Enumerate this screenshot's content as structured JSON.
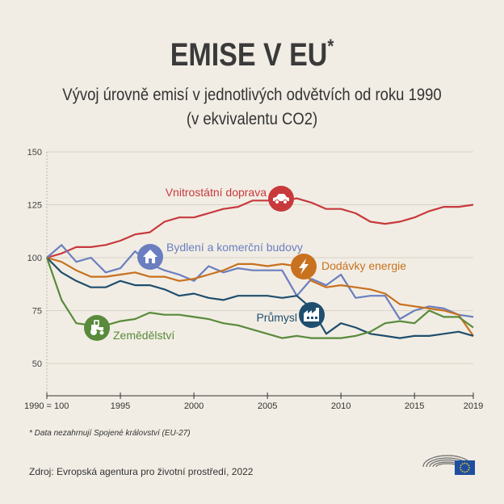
{
  "header": {
    "title": "EMISE V EU",
    "title_mark": "*",
    "subtitle_line1": "Vývoj úrovně emisí v jednotlivých odvětvích od roku 1990",
    "subtitle_line2": "(v ekvivalentu CO2)"
  },
  "chart_data": {
    "type": "line",
    "xlim": [
      1990,
      2019
    ],
    "ylim": [
      50,
      150
    ],
    "yticks": [
      50,
      75,
      100,
      125,
      150
    ],
    "xticks": [
      {
        "value": 1990,
        "label": "1990 = 100"
      },
      {
        "value": 1995,
        "label": "1995"
      },
      {
        "value": 2000,
        "label": "2000"
      },
      {
        "value": 2005,
        "label": "2005"
      },
      {
        "value": 2010,
        "label": "2010"
      },
      {
        "value": 2015,
        "label": "2015"
      },
      {
        "value": 2019,
        "label": "2019"
      }
    ],
    "grid": "horizontal",
    "x": [
      1990,
      1991,
      1992,
      1993,
      1994,
      1995,
      1996,
      1997,
      1998,
      1999,
      2000,
      2001,
      2002,
      2003,
      2004,
      2005,
      2006,
      2007,
      2008,
      2009,
      2010,
      2011,
      2012,
      2013,
      2014,
      2015,
      2016,
      2017,
      2018,
      2019
    ],
    "series": [
      {
        "name": "Vnitrostátní doprava",
        "color": "#c8393c",
        "icon": "car-icon",
        "values": [
          100,
          102,
          105,
          105,
          106,
          108,
          111,
          112,
          117,
          119,
          119,
          121,
          123,
          124,
          127,
          127,
          127,
          128,
          126,
          123,
          123,
          121,
          117,
          116,
          117,
          119,
          122,
          124,
          124,
          125
        ]
      },
      {
        "name": "Bydlení a komerční budovy",
        "color": "#6a7ec0",
        "icon": "house-icon",
        "values": [
          100,
          106,
          98,
          100,
          93,
          95,
          103,
          97,
          94,
          92,
          89,
          96,
          93,
          95,
          94,
          94,
          94,
          82,
          90,
          87,
          92,
          81,
          82,
          82,
          71,
          75,
          77,
          76,
          73,
          72
        ]
      },
      {
        "name": "Dodávky energie",
        "color": "#c8711e",
        "icon": "lightning-icon",
        "values": [
          100,
          98,
          94,
          91,
          91,
          92,
          93,
          91,
          91,
          89,
          90,
          92,
          94,
          97,
          97,
          96,
          97,
          96,
          89,
          86,
          87,
          86,
          85,
          83,
          78,
          77,
          76,
          75,
          73,
          63
        ]
      },
      {
        "name": "Průmysl",
        "color": "#1f4e6e",
        "icon": "factory-icon",
        "values": [
          100,
          93,
          89,
          86,
          86,
          89,
          87,
          87,
          85,
          82,
          83,
          81,
          80,
          82,
          82,
          82,
          81,
          82,
          76,
          64,
          69,
          67,
          64,
          63,
          62,
          63,
          63,
          64,
          65,
          63
        ]
      },
      {
        "name": "Zemědělství",
        "color": "#5a8a3c",
        "icon": "tractor-icon",
        "values": [
          100,
          80,
          69,
          68,
          68,
          70,
          71,
          74,
          73,
          73,
          72,
          71,
          69,
          68,
          66,
          64,
          62,
          63,
          62,
          62,
          62,
          63,
          65,
          69,
          70,
          69,
          75,
          72,
          72,
          67
        ]
      }
    ]
  },
  "footer": {
    "footnote": "* Data nezahrnují Spojené království (EU-27)",
    "source": "Zdroj: Evropská agentura pro životní prostředí, 2022"
  },
  "logo": {
    "name": "european-parliament-logo",
    "eu_flag_color": "#1f4e9e",
    "star_color": "#f5cd2a"
  }
}
